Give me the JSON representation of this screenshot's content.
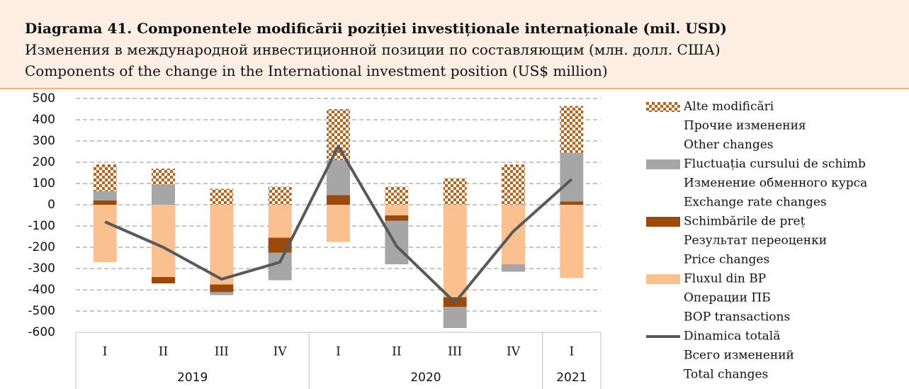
{
  "chart_data": {
    "type": "stacked-bar-line",
    "title": "Diagrama 41. Componentele modificării poziției investiționale internaționale (mil. USD)",
    "subtitle_ru": "Изменения в международной инвестиционной позиции по составляющим (млн. долл. США)",
    "subtitle_en": "Components of the change in the International investment position (US$ million)",
    "categories": [
      "I",
      "II",
      "III",
      "IV",
      "I",
      "II",
      "III",
      "IV",
      "I"
    ],
    "groups": [
      {
        "label": "2019",
        "span": 4
      },
      {
        "label": "2020",
        "span": 4
      },
      {
        "label": "2021",
        "span": 1
      }
    ],
    "ylim": [
      -600,
      500
    ],
    "yticks": [
      -600,
      -500,
      -400,
      -300,
      -200,
      -100,
      0,
      100,
      200,
      300,
      400,
      500
    ],
    "grid": true,
    "series": [
      {
        "name": "Fluxul din BP",
        "name_ru": "Операции ПБ",
        "name_en": "BOP transactions",
        "kind": "bar",
        "color": "#fac090",
        "values": [
          -270,
          -340,
          -375,
          -155,
          -175,
          -50,
          -435,
          -280,
          -345
        ]
      },
      {
        "name": "Schimbările de preț",
        "name_ru": "Результат переоценки",
        "name_en": "Price changes",
        "kind": "bar",
        "color": "#9c4a0c",
        "values": [
          20,
          -30,
          -35,
          -70,
          45,
          -25,
          -45,
          0,
          15
        ]
      },
      {
        "name": "Fluctuația cursului de schimb",
        "name_ru": "Изменение обменного курса",
        "name_en": "Exchange rate changes",
        "kind": "bar",
        "color": "#a6a6a6",
        "values": [
          45,
          95,
          -15,
          -130,
          165,
          -205,
          -100,
          -35,
          230
        ]
      },
      {
        "name": "Alte modificări",
        "name_ru": "Прочие изменения",
        "name_en": "Other changes",
        "kind": "bar",
        "color": "#b5651d",
        "pattern": "checker",
        "values": [
          125,
          75,
          75,
          85,
          240,
          85,
          125,
          190,
          220
        ]
      },
      {
        "name": "Dinamica totală",
        "name_ru": "Всего изменений",
        "name_en": "Total changes",
        "kind": "line",
        "color": "#595959",
        "values": [
          -80,
          -200,
          -350,
          -270,
          275,
          -195,
          -460,
          -125,
          120
        ]
      }
    ],
    "legend_order": [
      3,
      2,
      1,
      0,
      4
    ]
  }
}
